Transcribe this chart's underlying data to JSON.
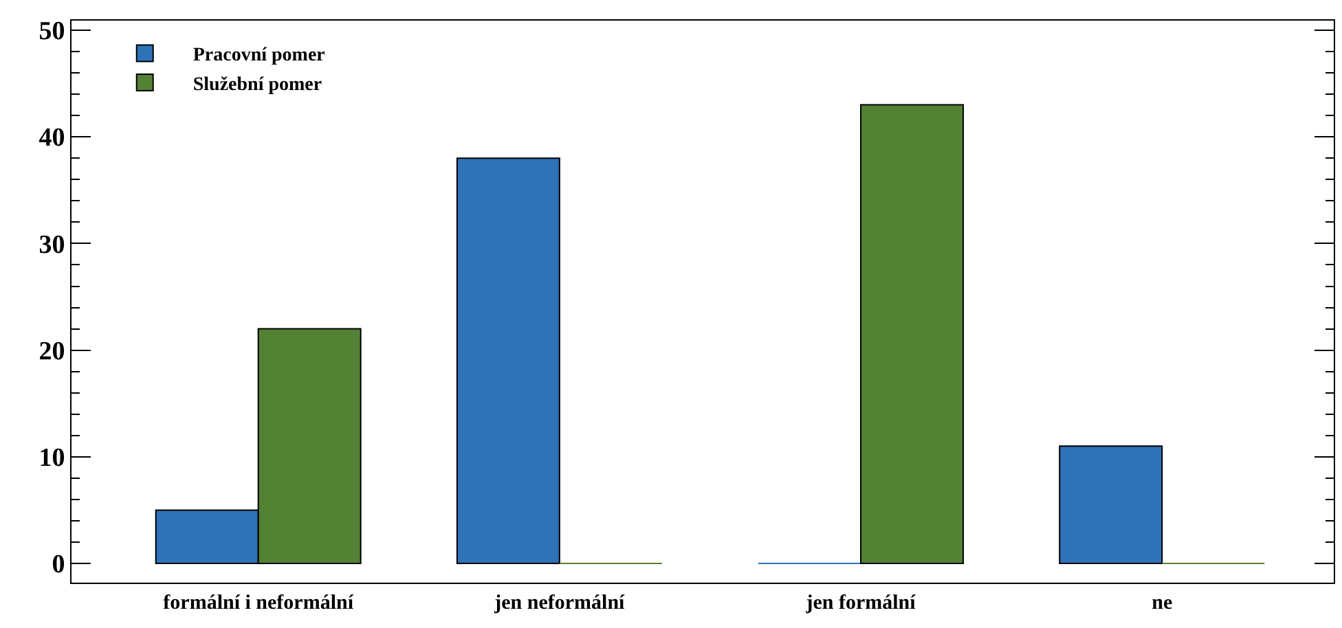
{
  "chart_data": {
    "type": "bar",
    "categories": [
      "formální i neformální",
      "jen neformální",
      "jen formální",
      "ne"
    ],
    "series": [
      {
        "name": "Pracovní pomer",
        "color": "#2e72b8",
        "values": [
          5,
          38,
          0,
          11
        ]
      },
      {
        "name": "Služební pomer",
        "color": "#548235",
        "values": [
          22,
          0,
          43,
          0
        ]
      }
    ],
    "ylim": [
      -1.8,
      50.9
    ],
    "yticks": [
      0,
      {
        "value": 2,
        "label": null
      },
      {
        "value": 4,
        "label": null
      },
      {
        "value": 6,
        "label": null
      },
      {
        "value": 8,
        "label": null
      },
      10,
      {
        "value": 12,
        "label": null
      },
      {
        "value": 14,
        "label": null
      },
      {
        "value": 16,
        "label": null
      },
      {
        "value": 18,
        "label": null
      },
      20,
      {
        "value": 22,
        "label": null
      },
      {
        "value": 24,
        "label": null
      },
      {
        "value": 26,
        "label": null
      },
      {
        "value": 28,
        "label": null
      },
      30,
      {
        "value": 32,
        "label": null
      },
      {
        "value": 34,
        "label": null
      },
      {
        "value": 36,
        "label": null
      },
      {
        "value": 38,
        "label": null
      },
      40,
      {
        "value": 42,
        "label": null
      },
      {
        "value": 44,
        "label": null
      },
      {
        "value": 46,
        "label": null
      },
      {
        "value": 48,
        "label": null
      },
      50
    ],
    "legend": "top left"
  }
}
